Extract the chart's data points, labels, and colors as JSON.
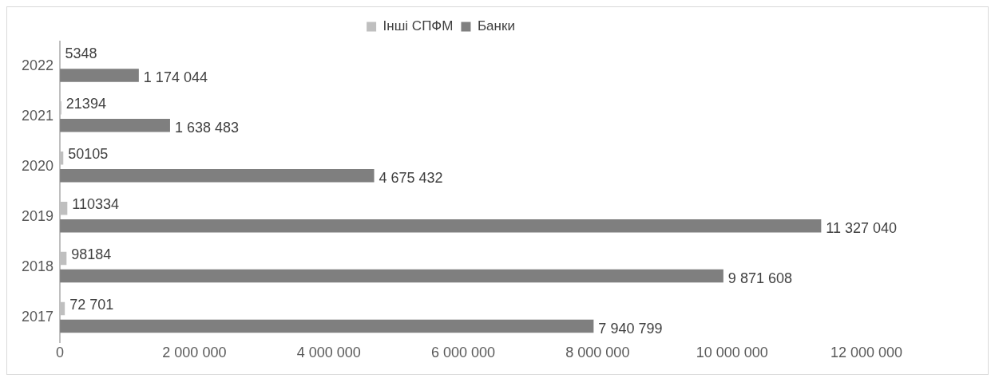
{
  "chart_data": {
    "type": "bar",
    "orientation": "horizontal",
    "categories": [
      "2022",
      "2021",
      "2020",
      "2019",
      "2018",
      "2017"
    ],
    "series": [
      {
        "name": "Інші СПФМ",
        "color": "#bfbfbf",
        "values": [
          5348,
          21394,
          50105,
          110334,
          98184,
          72701
        ],
        "value_labels": [
          "5348",
          "21394",
          "50105",
          "110334",
          "98184",
          "72 701"
        ]
      },
      {
        "name": "Банки",
        "color": "#7f7f7f",
        "values": [
          1174044,
          1638483,
          4675432,
          11327040,
          9871608,
          7940799
        ],
        "value_labels": [
          "1 174 044",
          "1 638 483",
          "4 675 432",
          "11 327 040",
          "9 871 608",
          "7 940 799"
        ]
      }
    ],
    "xlim": [
      0,
      12000000
    ],
    "xticks": [
      0,
      {
        "value": 2000000,
        "label": "2 000 000"
      },
      {
        "value": 4000000,
        "label": "4 000 000"
      },
      {
        "value": 6000000,
        "label": "6 000 000"
      },
      {
        "value": 8000000,
        "label": "8 000 000"
      },
      {
        "value": 10000000,
        "label": "10 000 000"
      },
      {
        "value": 12000000,
        "label": "12 000 000"
      }
    ],
    "legend": "top",
    "grid": false
  }
}
